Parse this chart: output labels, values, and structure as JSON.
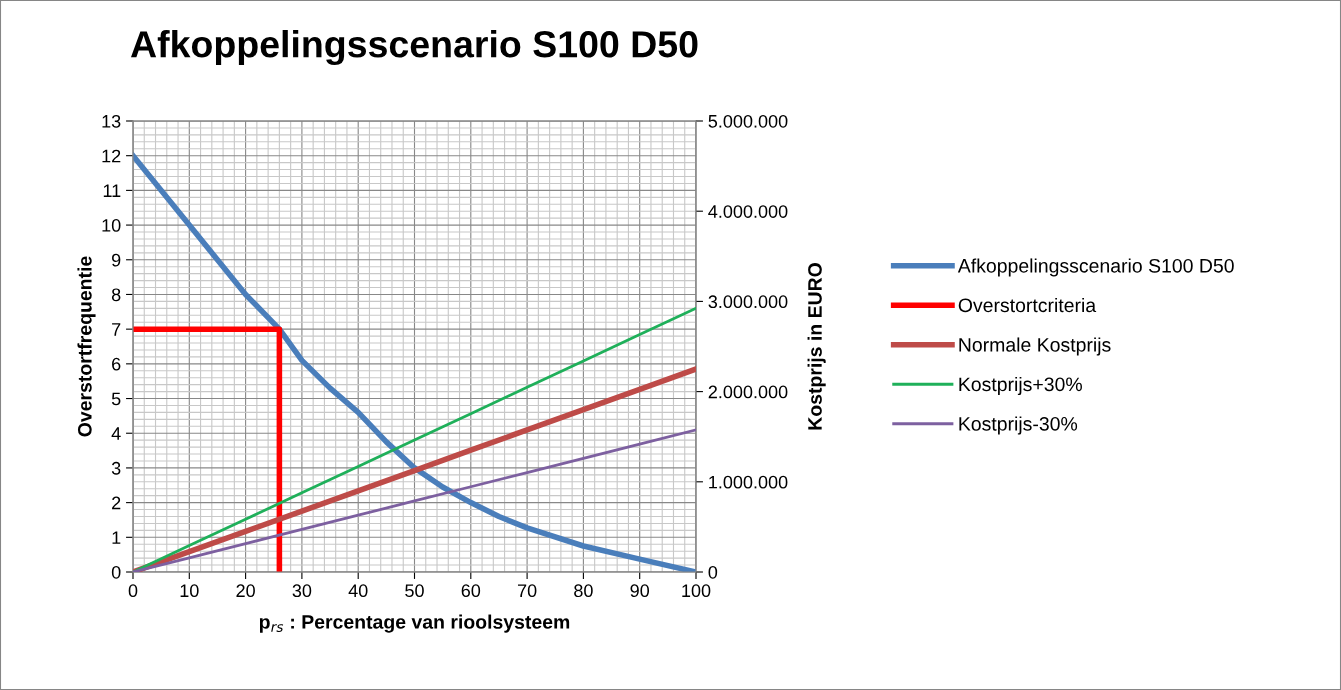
{
  "chart_data": {
    "type": "line",
    "title": "Afkoppelingsscenario S100 D50",
    "xlabel": "p$_{rs}$ : Percentage van rioolsysteem",
    "ylabel": "Overstortfrequentie",
    "y2label": "Kostprijs in EURO",
    "series": [
      {
        "name": "Afkoppelingsscenario S100 D50",
        "color": "#4a7ebb",
        "x": [
          0,
          10,
          20,
          26,
          30,
          35,
          40,
          45,
          50,
          55,
          60,
          65,
          70,
          80,
          90,
          100
        ],
        "values": [
          12,
          10,
          8,
          7,
          6.1,
          5.3,
          4.6,
          3.75,
          3.0,
          2.45,
          2.0,
          1.6,
          1.27,
          0.75,
          0.37,
          0
        ]
      },
      {
        "name": "Overstortcriteria",
        "color": "#ff0000",
        "x": [
          0,
          26,
          26
        ],
        "values": [
          7,
          7,
          0
        ]
      },
      {
        "name": "Normale Kostprijs",
        "color": "#be4b48",
        "axis": "y2",
        "x": [
          0,
          10,
          20,
          30,
          40,
          50,
          60,
          70,
          80,
          90,
          100
        ],
        "values": [
          0,
          225000,
          450000,
          675000,
          900000,
          1125000,
          1350000,
          1575000,
          1800000,
          2025000,
          2250000
        ]
      },
      {
        "name": "Kostprijs+30%",
        "color": "#1fb05a",
        "axis": "y2",
        "x": [
          0,
          10,
          20,
          30,
          40,
          50,
          60,
          70,
          80,
          90,
          100
        ],
        "values": [
          0,
          292500,
          585000,
          877500,
          1170000,
          1462500,
          1755000,
          2047500,
          2340000,
          2632500,
          2925000
        ]
      },
      {
        "name": "Kostprijs-30%",
        "color": "#7d60a0",
        "axis": "y2",
        "x": [
          0,
          10,
          20,
          30,
          40,
          50,
          60,
          70,
          80,
          90,
          100
        ],
        "values": [
          0,
          157500,
          315000,
          472500,
          630000,
          787500,
          945000,
          1102500,
          1260000,
          1417500,
          1575000
        ]
      }
    ],
    "xlim": [
      0,
      100
    ],
    "xticks": [
      0,
      10,
      20,
      30,
      40,
      50,
      60,
      70,
      80,
      90,
      100
    ],
    "ylim": [
      0,
      13
    ],
    "yticks": [
      0,
      1,
      2,
      3,
      4,
      5,
      6,
      7,
      8,
      9,
      10,
      11,
      12,
      13
    ],
    "y2lim": [
      0,
      5000000
    ],
    "y2ticks": [
      0,
      {
        "value": 1000000,
        "label": "1.000.000"
      },
      {
        "value": 2000000,
        "label": "2.000.000"
      },
      {
        "value": 3000000,
        "label": "3.000.000"
      },
      {
        "value": 4000000,
        "label": "4.000.000"
      },
      {
        "value": 5000000,
        "label": "5.000.000"
      }
    ],
    "grid": true,
    "legend": "right"
  }
}
